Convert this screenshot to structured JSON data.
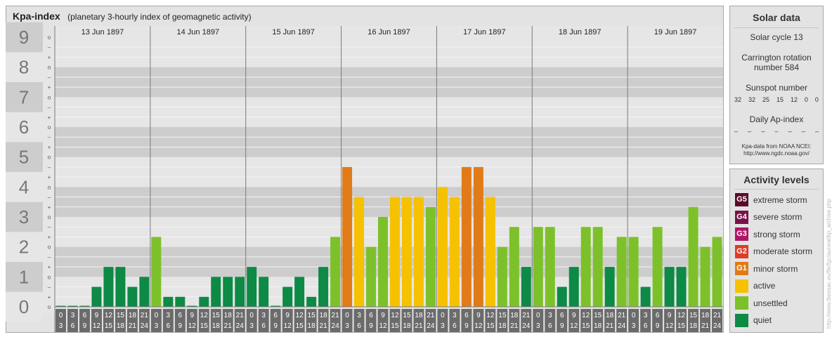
{
  "header": {
    "title": "Kpa-index",
    "subtitle": "(planetary 3-hourly index of geomagnetic activity)"
  },
  "chart_data": {
    "type": "bar",
    "ylim": [
      0,
      9
    ],
    "y_ticks": [
      "0",
      "1",
      "2",
      "3",
      "4",
      "5",
      "6",
      "7",
      "8",
      "9"
    ],
    "minor_tick_labels": [
      "+",
      "o",
      "–"
    ],
    "days": [
      "13 Jun 1897",
      "14 Jun 1897",
      "15 Jun 1897",
      "16 Jun 1897",
      "17 Jun 1897",
      "18 Jun 1897",
      "19 Jun 1897"
    ],
    "hour_start_labels": [
      "0",
      "3",
      "6",
      "9",
      "12",
      "15",
      "18",
      "21"
    ],
    "hour_end_labels": [
      "3",
      "6",
      "9",
      "12",
      "15",
      "18",
      "21",
      "24"
    ],
    "values": [
      0.0,
      0.0,
      0.0,
      0.667,
      1.333,
      1.333,
      0.667,
      1.0,
      2.333,
      0.333,
      0.333,
      0.0,
      0.333,
      1.0,
      1.0,
      1.0,
      1.333,
      1.0,
      0.0,
      0.667,
      1.0,
      0.333,
      1.333,
      2.333,
      4.667,
      3.667,
      2.0,
      3.0,
      3.667,
      3.667,
      3.667,
      3.333,
      4.0,
      3.667,
      4.667,
      4.667,
      3.667,
      2.0,
      2.667,
      1.333,
      2.667,
      2.667,
      0.667,
      1.333,
      2.667,
      2.667,
      1.333,
      2.333,
      2.333,
      0.667,
      2.667,
      1.333,
      1.333,
      3.333,
      2.0,
      2.333
    ],
    "grid": true
  },
  "solar_data": {
    "heading": "Solar data",
    "solar_cycle": "Solar cycle 13",
    "carrington_line1": "Carrington rotation",
    "carrington_line2": "number 584",
    "sunspot_heading": "Sunspot number",
    "sunspot_values": [
      "32",
      "32",
      "25",
      "15",
      "12",
      "0",
      "0"
    ],
    "ap_heading": "Daily Ap-index",
    "ap_values": [
      "–",
      "–",
      "–",
      "–",
      "–",
      "–",
      "–"
    ],
    "source_line1": "Kpa-data from NOAA NCEI:",
    "source_line2": "http://www.ngdc.noaa.gov/"
  },
  "activity_levels": {
    "heading": "Activity levels",
    "items": [
      {
        "code": "G5",
        "label": "extreme storm",
        "color": "#5c0a2a"
      },
      {
        "code": "G4",
        "label": "severe storm",
        "color": "#7a1048"
      },
      {
        "code": "G3",
        "label": "strong storm",
        "color": "#b01565"
      },
      {
        "code": "G2",
        "label": "moderate storm",
        "color": "#dc3c28"
      },
      {
        "code": "G1",
        "label": "minor storm",
        "color": "#e07b18"
      },
      {
        "code": "",
        "label": "active",
        "color": "#f5c100"
      },
      {
        "code": "",
        "label": "unsettled",
        "color": "#7cc12a"
      },
      {
        "code": "",
        "label": "quiet",
        "color": "#0d8a45"
      }
    ]
  },
  "credit": "http://www.tbessac.eu/fle/fgc/auroral/kp_archive.php",
  "colors": {
    "quiet": "#0d8a45",
    "unsettled": "#7cc12a",
    "active": "#f5c100",
    "minor_storm": "#e07b18"
  }
}
